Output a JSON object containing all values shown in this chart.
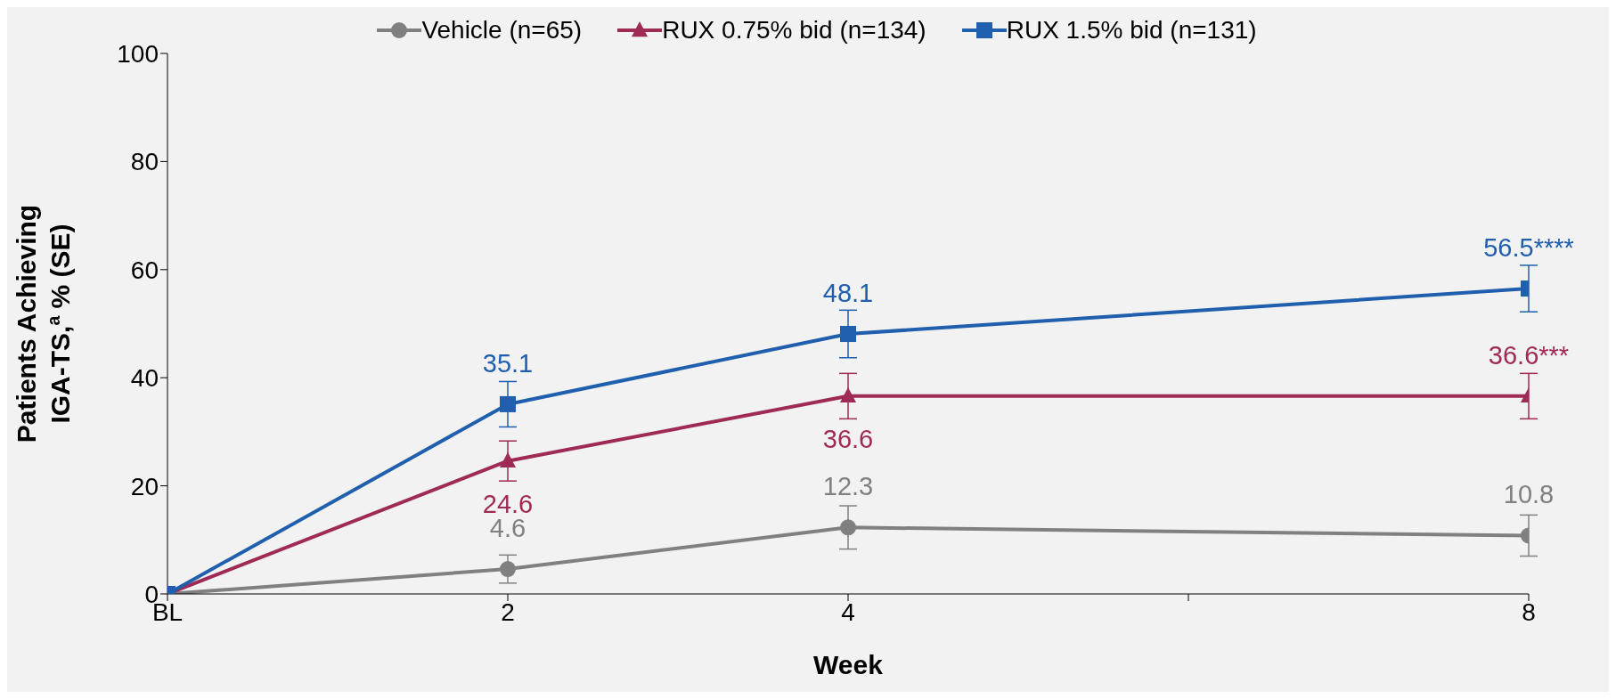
{
  "chart_data": {
    "type": "line",
    "xlabel": "Week",
    "ylabel": "Patients Achieving IGA-TS,$^{a}$ % (SE)",
    "x": [
      0,
      2,
      4,
      8
    ],
    "xlim": [
      0,
      8
    ],
    "xticks": [
      {
        "value": 0,
        "label": "BL"
      },
      2,
      4,
      {
        "value": 6,
        "label": null
      },
      8
    ],
    "ylim": [
      0,
      100
    ],
    "yticks": [
      0,
      20,
      40,
      60,
      80,
      100
    ],
    "legend": "top",
    "line_style": "solid",
    "series": [
      {
        "name": "Vehicle (n=65)",
        "color": "#808080",
        "marker": "circle",
        "values": [
          0,
          4.6,
          12.3,
          10.8
        ],
        "errors": [
          null,
          2.6,
          4,
          3.8
        ],
        "value_labels": [
          null,
          "4.6",
          "12.3",
          "10.8"
        ]
      },
      {
        "name": "RUX 0.75% bid (n=134)",
        "color": "#9e2a55",
        "marker": "triangle",
        "values": [
          0,
          24.6,
          36.6,
          36.6
        ],
        "errors": [
          null,
          3.7,
          4.2,
          4.2
        ],
        "value_labels": [
          null,
          "24.6",
          "36.6",
          "36.6***"
        ]
      },
      {
        "name": "RUX 1.5% bid (n=131)",
        "color": "#1f5fae",
        "marker": "square",
        "values": [
          0,
          35.1,
          48.1,
          56.5
        ],
        "errors": [
          null,
          4.2,
          4.4,
          4.3
        ],
        "value_labels": [
          null,
          "35.1",
          "48.1",
          "56.5****"
        ]
      }
    ]
  }
}
